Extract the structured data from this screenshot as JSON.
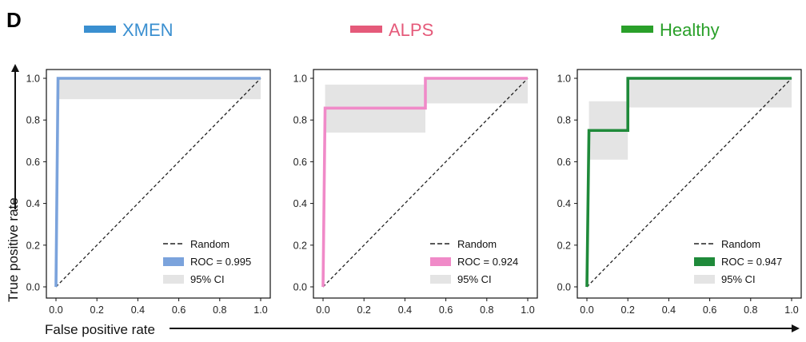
{
  "panel_label": "D",
  "legend_top": [
    {
      "label": "XMEN",
      "color": "#3a8fd0"
    },
    {
      "label": "ALPS",
      "color": "#e55a7a"
    },
    {
      "label": "Healthy",
      "color": "#2aa02a"
    }
  ],
  "axis_titles": {
    "x": "False positive rate",
    "y": "True positive rate"
  },
  "legend_labels": {
    "random": "Random",
    "ci": "95% CI"
  },
  "chart_data": [
    {
      "type": "line",
      "name": "XMEN",
      "color": "#7ba3dc",
      "roc_label": "ROC = 0.995",
      "roc": [
        [
          0,
          0
        ],
        [
          0.01,
          1.0
        ],
        [
          1.0,
          1.0
        ]
      ],
      "ci": [
        [
          0.01,
          0.9,
          1.0
        ],
        [
          1.0,
          0.9,
          1.0
        ]
      ],
      "xlim": [
        0,
        1
      ],
      "ylim": [
        0,
        1
      ],
      "xticks": [
        "0.0",
        "0.2",
        "0.4",
        "0.6",
        "0.8",
        "1.0"
      ],
      "yticks": [
        "0.0",
        "0.2",
        "0.4",
        "0.6",
        "0.8",
        "1.0"
      ],
      "random": [
        [
          0,
          0
        ],
        [
          1,
          1
        ]
      ]
    },
    {
      "type": "line",
      "name": "ALPS",
      "color": "#f08ac8",
      "roc_label": "ROC = 0.924",
      "roc": [
        [
          0,
          0
        ],
        [
          0.01,
          0.857
        ],
        [
          0.5,
          0.857
        ],
        [
          0.5,
          1.0
        ],
        [
          1.0,
          1.0
        ]
      ],
      "ci": [
        [
          0.01,
          0.74,
          0.97
        ],
        [
          0.5,
          0.74,
          0.97
        ],
        [
          0.5,
          0.88,
          1.0
        ],
        [
          1.0,
          0.88,
          1.0
        ]
      ],
      "xlim": [
        0,
        1
      ],
      "ylim": [
        0,
        1
      ],
      "xticks": [
        "0.0",
        "0.2",
        "0.4",
        "0.6",
        "0.8",
        "1.0"
      ],
      "yticks": [
        "0.0",
        "0.2",
        "0.4",
        "0.6",
        "0.8",
        "1.0"
      ],
      "random": [
        [
          0,
          0
        ],
        [
          1,
          1
        ]
      ]
    },
    {
      "type": "line",
      "name": "Healthy",
      "color": "#1f8a3a",
      "roc_label": "ROC = 0.947",
      "roc": [
        [
          0,
          0
        ],
        [
          0.01,
          0.75
        ],
        [
          0.2,
          0.75
        ],
        [
          0.2,
          1.0
        ],
        [
          1.0,
          1.0
        ]
      ],
      "ci": [
        [
          0.01,
          0.61,
          0.89
        ],
        [
          0.2,
          0.61,
          0.89
        ],
        [
          0.2,
          0.86,
          1.0
        ],
        [
          1.0,
          0.86,
          1.0
        ]
      ],
      "xlim": [
        0,
        1
      ],
      "ylim": [
        0,
        1
      ],
      "xticks": [
        "0.0",
        "0.2",
        "0.4",
        "0.6",
        "0.8",
        "1.0"
      ],
      "yticks": [
        "0.0",
        "0.2",
        "0.4",
        "0.6",
        "0.8",
        "1.0"
      ],
      "random": [
        [
          0,
          0
        ],
        [
          1,
          1
        ]
      ]
    }
  ]
}
